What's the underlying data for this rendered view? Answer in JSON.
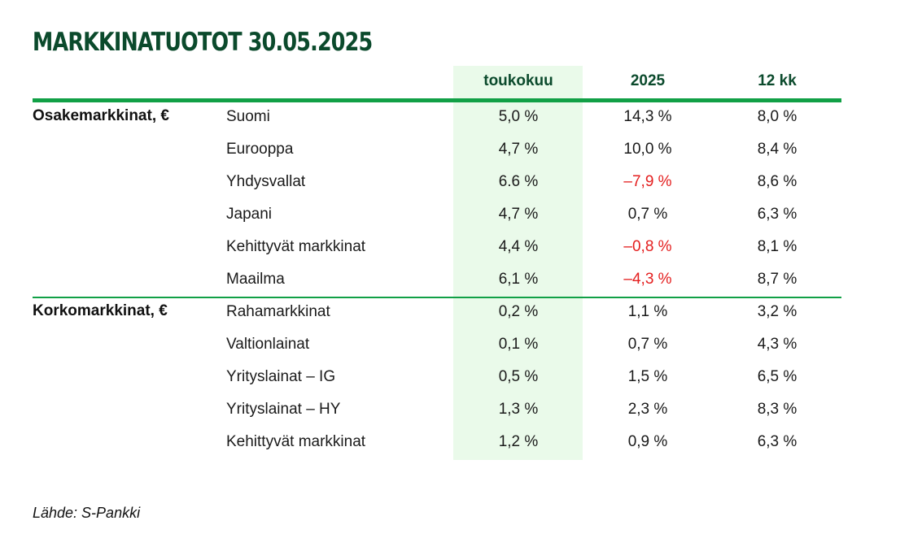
{
  "title": "MARKKINATUOTOT 30.05.2025",
  "source": "Lähde: S-Pankki",
  "colors": {
    "title": "#0b4a2c",
    "rule": "#11a046",
    "highlight": "#eafaea",
    "negative": "#e41e1e"
  },
  "chart_data": {
    "type": "table",
    "columns": [
      "toukokuu",
      "2025",
      "12 kk"
    ],
    "groups": [
      {
        "name": "Osakemarkkinat, €",
        "rows": [
          {
            "label": "Suomi",
            "values": [
              "5,0 %",
              "14,3 %",
              "8,0 %"
            ]
          },
          {
            "label": "Eurooppa",
            "values": [
              "4,7 %",
              "10,0 %",
              "8,4 %"
            ]
          },
          {
            "label": "Yhdysvallat",
            "values": [
              "6.6 %",
              "–7,9 %",
              "8,6 %"
            ]
          },
          {
            "label": "Japani",
            "values": [
              "4,7 %",
              "0,7 %",
              "6,3 %"
            ]
          },
          {
            "label": "Kehittyvät markkinat",
            "values": [
              "4,4 %",
              "–0,8 %",
              "8,1 %"
            ]
          },
          {
            "label": "Maailma",
            "values": [
              "6,1 %",
              "–4,3 %",
              "8,7 %"
            ]
          }
        ]
      },
      {
        "name": "Korkomarkkinat, €",
        "rows": [
          {
            "label": "Rahamarkkinat",
            "values": [
              "0,2 %",
              "1,1 %",
              "3,2 %"
            ]
          },
          {
            "label": "Valtionlainat",
            "values": [
              "0,1 %",
              "0,7 %",
              "4,3 %"
            ]
          },
          {
            "label": "Yrityslainat – IG",
            "values": [
              "0,5 %",
              "1,5 %",
              "6,5 %"
            ]
          },
          {
            "label": "Yrityslainat – HY",
            "values": [
              "1,3 %",
              "2,3 %",
              "8,3 %"
            ]
          },
          {
            "label": "Kehittyvät markkinat",
            "values": [
              "1,2 %",
              "0,9 %",
              "6,3 %"
            ]
          }
        ]
      }
    ],
    "highlighted_column": "toukokuu"
  }
}
